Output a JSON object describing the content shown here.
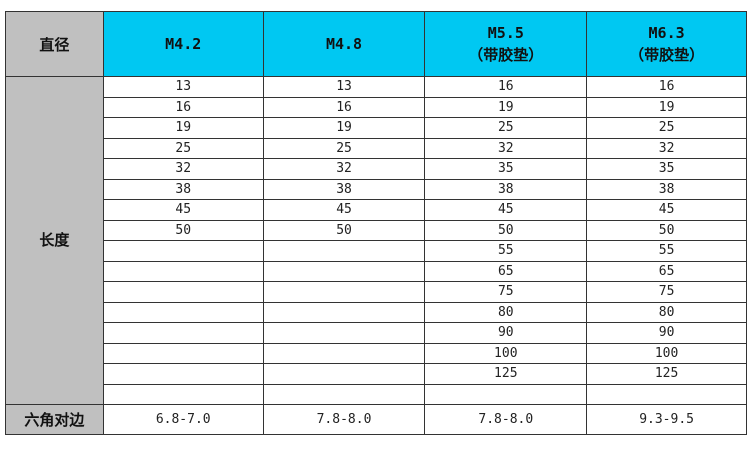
{
  "header": {
    "label": "直径",
    "columns": [
      {
        "name": "M4.2",
        "note": ""
      },
      {
        "name": "M4.8",
        "note": ""
      },
      {
        "name": "M5.5",
        "note": "（带胶垫）"
      },
      {
        "name": "M6.3",
        "note": "（带胶垫）"
      }
    ]
  },
  "length_label": "长度",
  "rows": [
    [
      "13",
      "13",
      "16",
      "16"
    ],
    [
      "16",
      "16",
      "19",
      "19"
    ],
    [
      "19",
      "19",
      "25",
      "25"
    ],
    [
      "25",
      "25",
      "32",
      "32"
    ],
    [
      "32",
      "32",
      "35",
      "35"
    ],
    [
      "38",
      "38",
      "38",
      "38"
    ],
    [
      "45",
      "45",
      "45",
      "45"
    ],
    [
      "50",
      "50",
      "50",
      "50"
    ],
    [
      "",
      "",
      "55",
      "55"
    ],
    [
      "",
      "",
      "65",
      "65"
    ],
    [
      "",
      "",
      "75",
      "75"
    ],
    [
      "",
      "",
      "80",
      "80"
    ],
    [
      "",
      "",
      "90",
      "90"
    ],
    [
      "",
      "",
      "100",
      "100"
    ],
    [
      "",
      "",
      "125",
      "125"
    ],
    [
      "",
      "",
      "",
      ""
    ]
  ],
  "footer": {
    "label": "六角对边",
    "values": [
      "6.8-7.0",
      "7.8-8.0",
      "7.8-8.0",
      "9.3-9.5"
    ]
  },
  "colors": {
    "header_bg": "#00c8f2",
    "label_bg": "#c0c0c0"
  }
}
